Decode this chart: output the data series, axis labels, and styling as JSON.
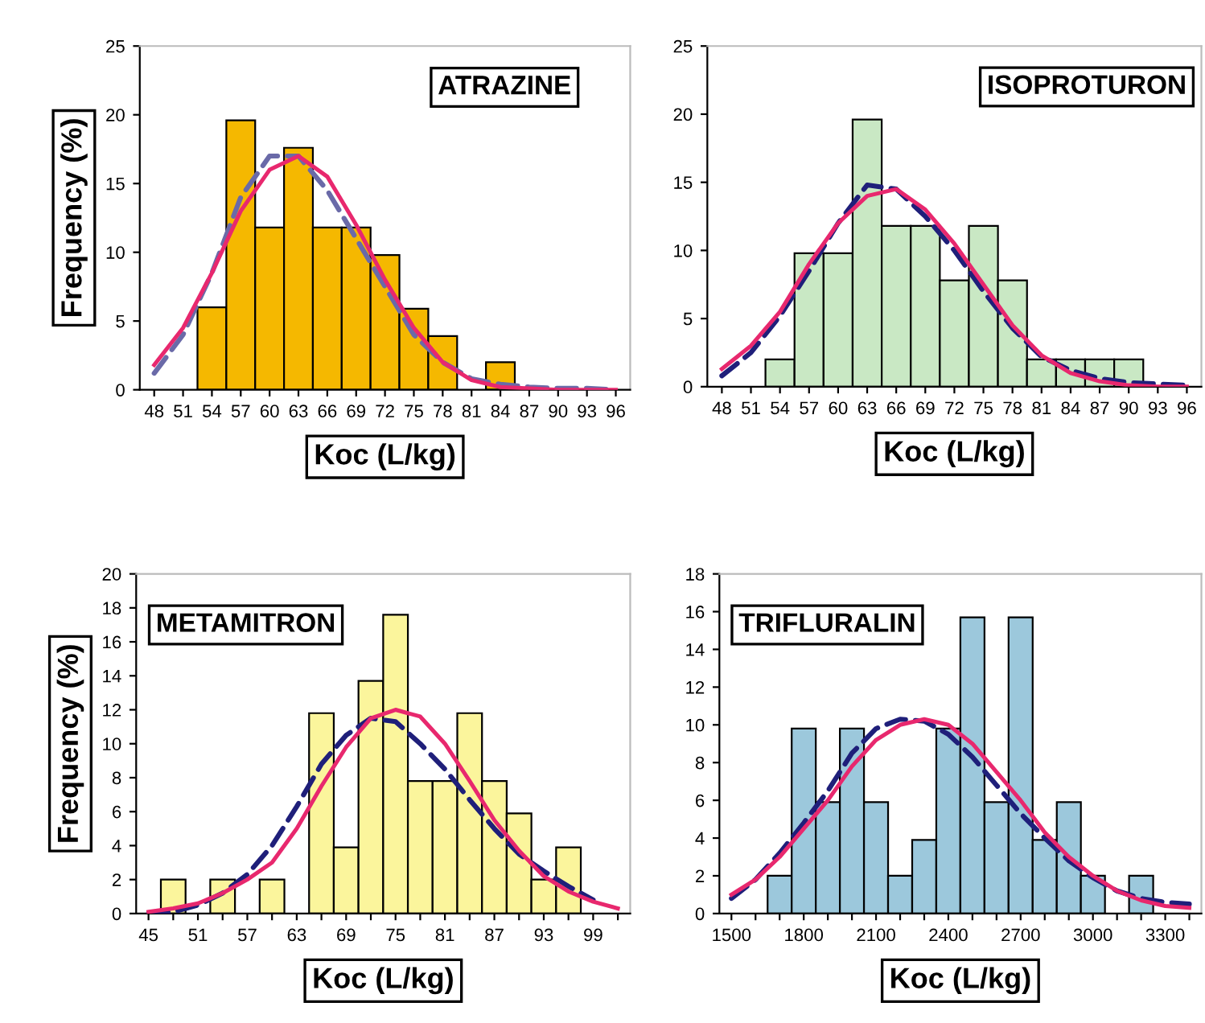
{
  "chart_data": [
    {
      "type": "bar",
      "title": "ATRAZINE",
      "xlabel": "Koc (L/kg)",
      "ylabel": "Frequency (%)",
      "categories": [
        "48",
        "51",
        "54",
        "57",
        "60",
        "63",
        "66",
        "69",
        "72",
        "75",
        "78",
        "81",
        "84",
        "87",
        "90",
        "93",
        "96"
      ],
      "ylim": [
        0,
        25
      ],
      "yticks": [
        0,
        5,
        10,
        15,
        20,
        25
      ],
      "grid": false,
      "legend": false,
      "series": [
        {
          "color": "#f5b800",
          "values": [
            null,
            null,
            6,
            19.6,
            11.8,
            17.6,
            11.8,
            11.8,
            9.8,
            5.9,
            3.9,
            null,
            2,
            null,
            null,
            null,
            null
          ]
        },
        {
          "type": "line",
          "color": "#6a6aa8",
          "line_style": "dashed",
          "values": [
            1.2,
            4,
            8.5,
            14,
            17,
            17,
            14.5,
            11,
            7.5,
            4,
            2,
            0.8,
            0.4,
            0.2,
            0.1,
            0.1,
            0
          ]
        },
        {
          "type": "line",
          "color": "#e8286e",
          "line_style": "solid",
          "values": [
            1.8,
            4.5,
            8.5,
            13,
            16,
            17,
            15.5,
            12,
            8,
            4.5,
            2,
            0.7,
            0.2,
            0.1,
            0,
            0,
            0
          ]
        }
      ]
    },
    {
      "type": "bar",
      "title": "ISOPROTURON",
      "xlabel": "Koc (L/kg)",
      "categories": [
        "48",
        "51",
        "54",
        "57",
        "60",
        "63",
        "66",
        "69",
        "72",
        "75",
        "78",
        "81",
        "84",
        "87",
        "90",
        "93",
        "96"
      ],
      "ylim": [
        0,
        25
      ],
      "yticks": [
        0,
        5,
        10,
        15,
        20,
        25
      ],
      "grid": false,
      "legend": false,
      "series": [
        {
          "color": "#c9e8c4",
          "values": [
            null,
            null,
            2,
            9.8,
            9.8,
            19.6,
            11.8,
            11.8,
            7.8,
            11.8,
            7.8,
            2,
            2,
            2,
            2,
            null,
            null
          ]
        },
        {
          "type": "line",
          "color": "#1f1f7a",
          "line_style": "dashed",
          "values": [
            0.8,
            2.5,
            5.2,
            8.5,
            12,
            14.8,
            14.5,
            12.5,
            10,
            7,
            4.3,
            2.2,
            1.2,
            0.6,
            0.3,
            0.2,
            0.1
          ]
        },
        {
          "type": "line",
          "color": "#e8286e",
          "line_style": "solid",
          "values": [
            1.3,
            3,
            5.5,
            9,
            12,
            14,
            14.5,
            13,
            10.5,
            7.5,
            4.5,
            2.3,
            1,
            0.4,
            0.1,
            0,
            0
          ]
        }
      ]
    },
    {
      "type": "bar",
      "title": "METAMITRON",
      "xlabel": "Koc (L/kg)",
      "ylabel": "Frequency (%)",
      "categories": [
        "45",
        null,
        "51",
        null,
        "57",
        null,
        "63",
        null,
        "69",
        null,
        "75",
        null,
        "81",
        null,
        "87",
        null,
        "93",
        null,
        "99",
        null
      ],
      "ylim": [
        0,
        20
      ],
      "yticks": [
        0,
        2,
        4,
        6,
        8,
        10,
        12,
        14,
        16,
        18,
        20
      ],
      "grid": false,
      "legend": false,
      "series": [
        {
          "color": "#fbf59c",
          "values": [
            null,
            2,
            null,
            2,
            null,
            2,
            null,
            11.8,
            3.9,
            13.7,
            17.6,
            7.8,
            7.8,
            11.8,
            7.8,
            5.9,
            2,
            3.9,
            null,
            null
          ]
        },
        {
          "type": "line",
          "color": "#1f1f7a",
          "line_style": "dashed",
          "values": [
            0,
            0.1,
            0.5,
            1.2,
            2.3,
            4,
            6.3,
            8.8,
            10.5,
            11.5,
            11.3,
            10,
            8.5,
            6.7,
            5,
            3.5,
            2.5,
            1.6,
            0.8,
            null
          ]
        },
        {
          "type": "line",
          "color": "#e8286e",
          "line_style": "solid",
          "values": [
            0.1,
            0.3,
            0.6,
            1.2,
            2,
            3,
            5,
            7.5,
            9.8,
            11.5,
            12,
            11.6,
            10,
            7.8,
            5.5,
            3.7,
            2.2,
            1.3,
            0.7,
            0.3
          ]
        }
      ]
    },
    {
      "type": "bar",
      "title": "TRIFLURALIN",
      "xlabel": "Koc (L/kg)",
      "categories": [
        "1500",
        null,
        null,
        "1800",
        null,
        null,
        "2100",
        null,
        null,
        "2400",
        null,
        null,
        "2700",
        null,
        null,
        "3000",
        null,
        null,
        "3300",
        null
      ],
      "ylim": [
        0,
        18
      ],
      "yticks": [
        0,
        2,
        4,
        6,
        8,
        10,
        12,
        14,
        16,
        18
      ],
      "grid": false,
      "legend": false,
      "series": [
        {
          "color": "#9cc8dc",
          "values": [
            null,
            null,
            2,
            9.8,
            5.9,
            9.8,
            5.9,
            2,
            3.9,
            9.8,
            15.7,
            5.9,
            15.7,
            3.9,
            5.9,
            2,
            null,
            2,
            null,
            null
          ]
        },
        {
          "type": "line",
          "color": "#1f1f7a",
          "line_style": "dashed",
          "values": [
            0.8,
            1.8,
            3.2,
            4.8,
            6.5,
            8.5,
            9.8,
            10.3,
            10.2,
            9.5,
            8.3,
            6.8,
            5.3,
            4,
            2.8,
            1.9,
            1.2,
            0.8,
            0.6,
            0.5
          ]
        },
        {
          "type": "line",
          "color": "#e8286e",
          "line_style": "solid",
          "values": [
            1,
            1.8,
            3,
            4.5,
            6,
            7.8,
            9.2,
            10,
            10.3,
            10,
            9,
            7.5,
            6,
            4.3,
            3,
            2,
            1.2,
            0.7,
            0.4,
            0.3
          ]
        }
      ]
    }
  ]
}
